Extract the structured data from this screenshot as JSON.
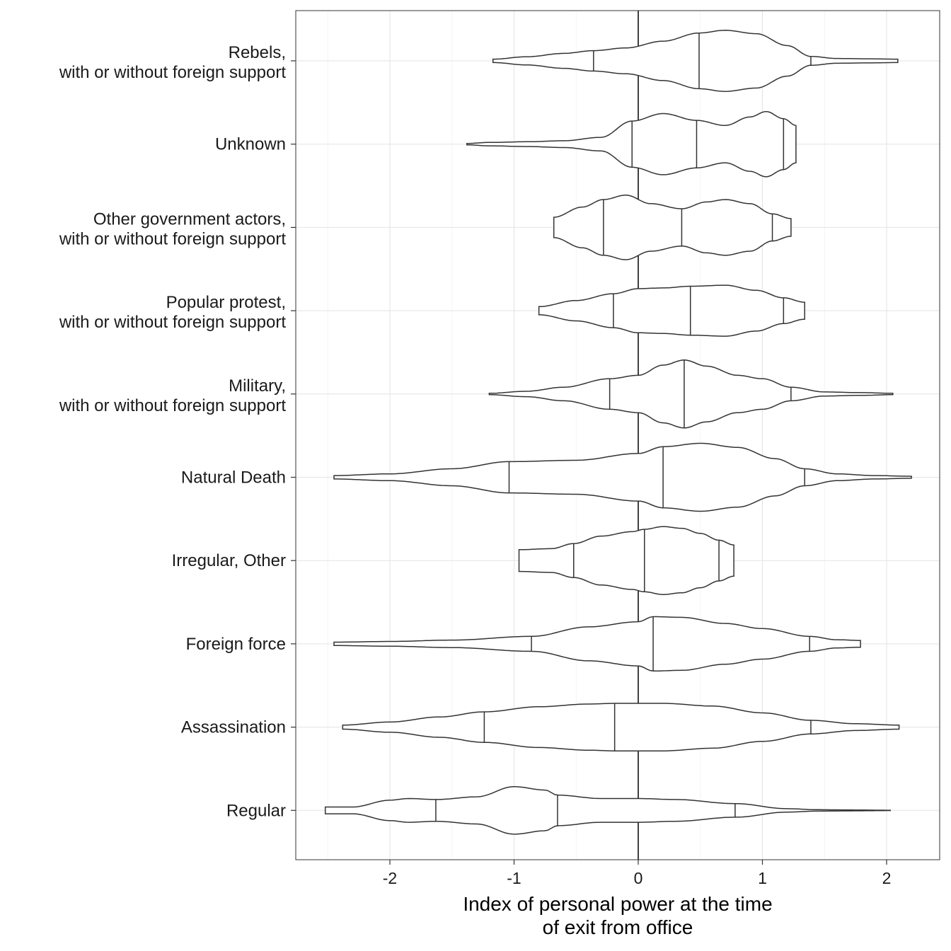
{
  "chart_data": {
    "type": "violin",
    "xlabel": [
      "Index of personal power at the time",
      "of exit from office"
    ],
    "xlim": [
      -2.75,
      2.42
    ],
    "xticks": [
      -2,
      -1,
      0,
      1,
      2
    ],
    "xtick_labels": [
      "-2",
      "-1",
      "0",
      "1",
      "2"
    ],
    "reference_line_x": 0,
    "grid": true,
    "orientation": "horizontal",
    "categories": [
      {
        "label": [
          "Rebels,",
          "with or without foreign support"
        ],
        "min": -1.17,
        "max": 2.09,
        "quantiles": [
          -0.36,
          0.49,
          1.39
        ],
        "profile": [
          [
            -1.17,
            0.05
          ],
          [
            -0.9,
            0.12
          ],
          [
            -0.6,
            0.22
          ],
          [
            -0.36,
            0.3
          ],
          [
            -0.1,
            0.38
          ],
          [
            0.2,
            0.58
          ],
          [
            0.49,
            0.82
          ],
          [
            0.7,
            0.9
          ],
          [
            0.95,
            0.8
          ],
          [
            1.2,
            0.45
          ],
          [
            1.39,
            0.13
          ],
          [
            1.6,
            0.07
          ],
          [
            1.85,
            0.06
          ],
          [
            2.09,
            0.05
          ]
        ]
      },
      {
        "label": [
          "Unknown"
        ],
        "min": -1.38,
        "max": 1.27,
        "quantiles": [
          -0.05,
          0.47,
          1.17
        ],
        "profile": [
          [
            -1.38,
            0.02
          ],
          [
            -1.2,
            0.05
          ],
          [
            -0.9,
            0.07
          ],
          [
            -0.6,
            0.1
          ],
          [
            -0.3,
            0.2
          ],
          [
            -0.05,
            0.68
          ],
          [
            0.2,
            0.9
          ],
          [
            0.47,
            0.7
          ],
          [
            0.7,
            0.55
          ],
          [
            0.9,
            0.8
          ],
          [
            1.03,
            0.96
          ],
          [
            1.17,
            0.75
          ],
          [
            1.27,
            0.55
          ]
        ]
      },
      {
        "label": [
          "Other government actors,",
          "with or without foreign support"
        ],
        "min": -0.68,
        "max": 1.23,
        "quantiles": [
          -0.28,
          0.35,
          1.08
        ],
        "profile": [
          [
            -0.68,
            0.3
          ],
          [
            -0.45,
            0.6
          ],
          [
            -0.28,
            0.82
          ],
          [
            -0.1,
            0.95
          ],
          [
            0.1,
            0.7
          ],
          [
            0.35,
            0.55
          ],
          [
            0.55,
            0.75
          ],
          [
            0.7,
            0.82
          ],
          [
            0.9,
            0.7
          ],
          [
            1.08,
            0.4
          ],
          [
            1.23,
            0.26
          ]
        ]
      },
      {
        "label": [
          "Popular protest,",
          "with or without foreign support"
        ],
        "min": -0.8,
        "max": 1.34,
        "quantiles": [
          -0.2,
          0.42,
          1.17
        ],
        "profile": [
          [
            -0.8,
            0.12
          ],
          [
            -0.5,
            0.3
          ],
          [
            -0.2,
            0.5
          ],
          [
            0.0,
            0.65
          ],
          [
            0.2,
            0.67
          ],
          [
            0.42,
            0.72
          ],
          [
            0.7,
            0.75
          ],
          [
            0.95,
            0.6
          ],
          [
            1.17,
            0.38
          ],
          [
            1.34,
            0.25
          ]
        ]
      },
      {
        "label": [
          "Military,",
          "with or without foreign support"
        ],
        "min": -1.2,
        "max": 2.05,
        "quantiles": [
          -0.23,
          0.37,
          1.23
        ],
        "profile": [
          [
            -1.2,
            0.02
          ],
          [
            -0.9,
            0.08
          ],
          [
            -0.6,
            0.2
          ],
          [
            -0.23,
            0.45
          ],
          [
            0.0,
            0.55
          ],
          [
            0.2,
            0.85
          ],
          [
            0.37,
            1.0
          ],
          [
            0.55,
            0.82
          ],
          [
            0.8,
            0.55
          ],
          [
            1.0,
            0.45
          ],
          [
            1.23,
            0.2
          ],
          [
            1.5,
            0.06
          ],
          [
            1.8,
            0.04
          ],
          [
            2.05,
            0.02
          ]
        ]
      },
      {
        "label": [
          "Natural Death"
        ],
        "min": -2.45,
        "max": 2.2,
        "quantiles": [
          -1.04,
          0.2,
          1.34
        ],
        "profile": [
          [
            -2.45,
            0.05
          ],
          [
            -2.0,
            0.1
          ],
          [
            -1.5,
            0.25
          ],
          [
            -1.04,
            0.46
          ],
          [
            -0.5,
            0.5
          ],
          [
            0.0,
            0.7
          ],
          [
            0.2,
            0.9
          ],
          [
            0.5,
            1.0
          ],
          [
            0.8,
            0.88
          ],
          [
            1.1,
            0.55
          ],
          [
            1.34,
            0.25
          ],
          [
            1.6,
            0.1
          ],
          [
            1.9,
            0.05
          ],
          [
            2.2,
            0.03
          ]
        ]
      },
      {
        "label": [
          "Irregular, Other"
        ],
        "min": -0.96,
        "max": 0.77,
        "quantiles": [
          -0.52,
          0.05,
          0.65
        ],
        "profile": [
          [
            -0.96,
            0.32
          ],
          [
            -0.7,
            0.35
          ],
          [
            -0.52,
            0.5
          ],
          [
            -0.3,
            0.72
          ],
          [
            -0.05,
            0.85
          ],
          [
            0.05,
            0.92
          ],
          [
            0.2,
            1.0
          ],
          [
            0.35,
            0.95
          ],
          [
            0.5,
            0.8
          ],
          [
            0.65,
            0.6
          ],
          [
            0.77,
            0.46
          ]
        ]
      },
      {
        "label": [
          "Foreign force"
        ],
        "min": -2.45,
        "max": 1.79,
        "quantiles": [
          -0.86,
          0.12,
          1.38
        ],
        "profile": [
          [
            -2.45,
            0.05
          ],
          [
            -2.0,
            0.07
          ],
          [
            -1.5,
            0.11
          ],
          [
            -0.86,
            0.22
          ],
          [
            -0.4,
            0.5
          ],
          [
            0.0,
            0.65
          ],
          [
            0.12,
            0.8
          ],
          [
            0.35,
            0.78
          ],
          [
            0.7,
            0.6
          ],
          [
            1.0,
            0.45
          ],
          [
            1.38,
            0.22
          ],
          [
            1.6,
            0.12
          ],
          [
            1.79,
            0.1
          ]
        ]
      },
      {
        "label": [
          "Assassination"
        ],
        "min": -2.38,
        "max": 2.1,
        "quantiles": [
          -1.24,
          -0.19,
          1.39
        ],
        "profile": [
          [
            -2.38,
            0.06
          ],
          [
            -2.0,
            0.15
          ],
          [
            -1.6,
            0.3
          ],
          [
            -1.24,
            0.45
          ],
          [
            -0.8,
            0.6
          ],
          [
            -0.4,
            0.68
          ],
          [
            -0.19,
            0.7
          ],
          [
            0.2,
            0.7
          ],
          [
            0.6,
            0.62
          ],
          [
            1.0,
            0.42
          ],
          [
            1.39,
            0.2
          ],
          [
            1.75,
            0.1
          ],
          [
            2.1,
            0.06
          ]
        ]
      },
      {
        "label": [
          "Regular"
        ],
        "min": -2.52,
        "max": 2.03,
        "quantiles": [
          -1.63,
          -0.65,
          0.78
        ],
        "profile": [
          [
            -2.52,
            0.1
          ],
          [
            -2.3,
            0.1
          ],
          [
            -2.0,
            0.3
          ],
          [
            -1.85,
            0.35
          ],
          [
            -1.63,
            0.32
          ],
          [
            -1.3,
            0.4
          ],
          [
            -1.0,
            0.7
          ],
          [
            -0.75,
            0.6
          ],
          [
            -0.65,
            0.45
          ],
          [
            -0.3,
            0.35
          ],
          [
            0.0,
            0.35
          ],
          [
            0.3,
            0.32
          ],
          [
            0.78,
            0.2
          ],
          [
            1.2,
            0.05
          ],
          [
            1.45,
            0.02
          ],
          [
            1.65,
            0.015
          ],
          [
            2.03,
            0.005
          ]
        ]
      }
    ]
  }
}
